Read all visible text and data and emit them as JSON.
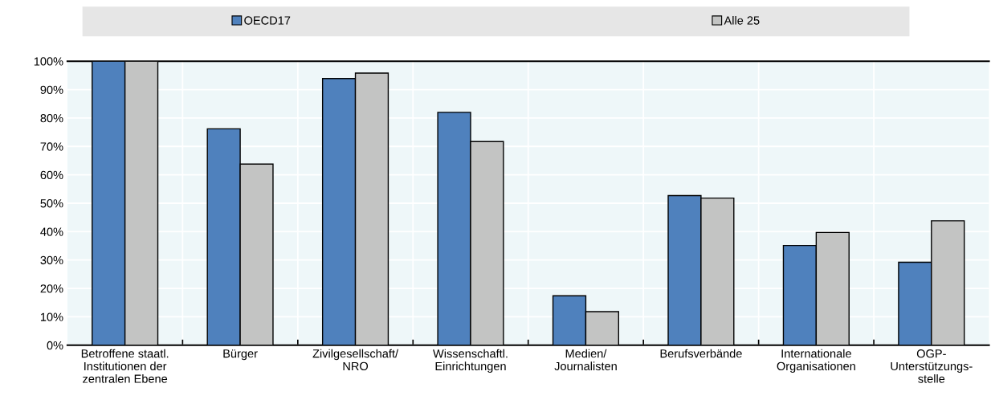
{
  "chart_data": {
    "type": "bar",
    "categories": [
      "Betroffene staatl.\nInstitutionen der\nzentralen Ebene",
      "Bürger",
      "Zivilgesellschaft/\nNRO",
      "Wissenschaftl.\nEinrichtungen",
      "Medien/\nJournalisten",
      "Berufsverbände",
      "Internationale\nOrganisationen",
      "OGP-\nUnterstützungs-\nstelle"
    ],
    "series": [
      {
        "name": "OECD17",
        "color": "#4f81bd",
        "values": [
          100,
          76.2,
          93.9,
          82.0,
          17.4,
          52.7,
          35.1,
          29.2
        ]
      },
      {
        "name": "Alle 25",
        "color": "#c3c4c3",
        "values": [
          100,
          63.8,
          95.8,
          71.7,
          11.8,
          51.8,
          39.7,
          43.8
        ]
      }
    ],
    "ylim": [
      0,
      100
    ],
    "yticks": [
      {
        "value": 0,
        "label": "0%"
      },
      {
        "value": 10,
        "label": "10%"
      },
      {
        "value": 20,
        "label": "20%"
      },
      {
        "value": 30,
        "label": "30%"
      },
      {
        "value": 40,
        "label": "40%"
      },
      {
        "value": 50,
        "label": "50%"
      },
      {
        "value": 60,
        "label": "60%"
      },
      {
        "value": 70,
        "label": "70%"
      },
      {
        "value": 80,
        "label": "80%"
      },
      {
        "value": 90,
        "label": "90%"
      },
      {
        "value": 100,
        "label": "100%"
      }
    ],
    "grid": true,
    "legend": "top"
  }
}
